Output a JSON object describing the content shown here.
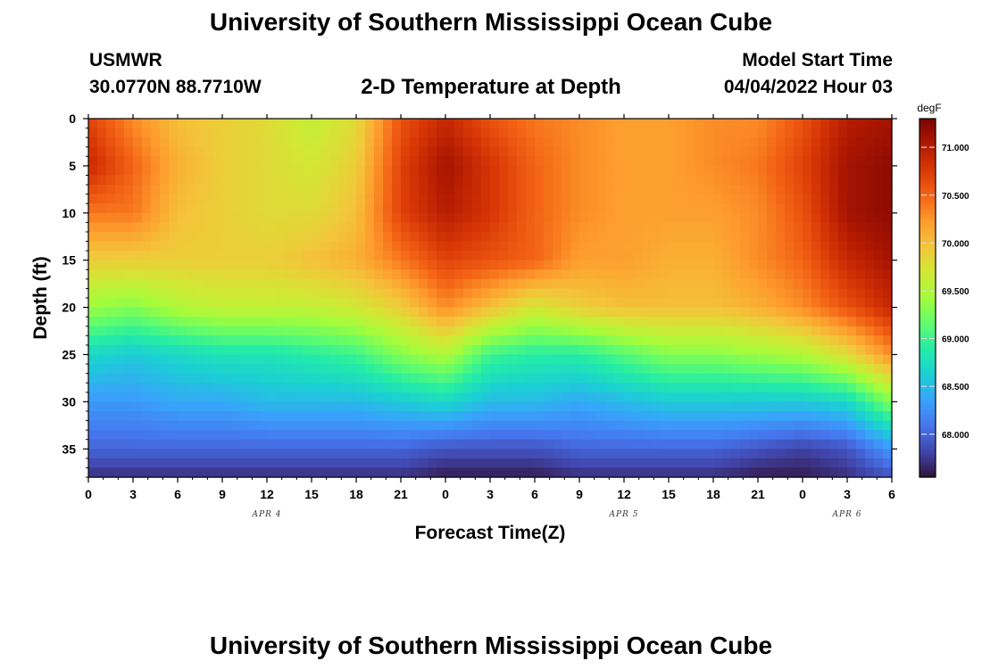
{
  "header": {
    "title": "University of Southern Mississippi Ocean Cube",
    "station_id": "USMWR",
    "station_coords": "30.0770N  88.7710W",
    "model_start_label": "Model Start Time",
    "model_start_time": "04/04/2022 Hour 03",
    "footer_title": "University of Southern Mississippi Ocean Cube"
  },
  "chart_data": {
    "type": "heatmap",
    "title": "2-D Temperature at Depth",
    "xlabel": "Forecast Time(Z)",
    "ylabel": "Depth (ft)",
    "x_range_hours": [
      0,
      54
    ],
    "x_tick_hours": [
      0,
      3,
      6,
      9,
      12,
      15,
      18,
      21,
      24,
      27,
      30,
      33,
      36,
      39,
      42,
      45,
      48,
      51,
      54
    ],
    "x_tick_labels": [
      "0",
      "3",
      "6",
      "9",
      "12",
      "15",
      "18",
      "21",
      "0",
      "3",
      "6",
      "9",
      "12",
      "15",
      "18",
      "21",
      "0",
      "3",
      "6"
    ],
    "date_labels": [
      {
        "hour": 12,
        "text": "APR 4"
      },
      {
        "hour": 36,
        "text": "APR 5"
      },
      {
        "hour": 51,
        "text": "APR 6"
      }
    ],
    "y_range_ft": [
      0,
      38
    ],
    "y_tick_values": [
      0,
      5,
      10,
      15,
      20,
      25,
      30,
      35
    ],
    "y_tick_labels": [
      "0",
      "5",
      "10",
      "15",
      "20",
      "25",
      "30",
      "35"
    ],
    "colorbar": {
      "unit": "degF",
      "min": 67.55,
      "max": 71.3,
      "tick_values": [
        68.0,
        68.5,
        69.0,
        69.5,
        70.0,
        70.5,
        71.0
      ],
      "tick_labels": [
        "68.000",
        "68.500",
        "69.000",
        "69.500",
        "70.000",
        "70.500",
        "71.000"
      ],
      "colors": [
        "#30123b",
        "#4145ab",
        "#4675ed",
        "#39a2fc",
        "#1bcfd4",
        "#24eca6",
        "#61fc6c",
        "#a4fc3b",
        "#d1e834",
        "#f3c63a",
        "#fe9b2d",
        "#f36315",
        "#d93806",
        "#b11901",
        "#7a0403"
      ]
    },
    "depth_profile_ft": [
      0,
      5,
      10,
      15,
      20,
      25,
      30,
      35,
      38
    ],
    "time_profile_hours": [
      0,
      3,
      6,
      9,
      12,
      15,
      18,
      21,
      24,
      27,
      30,
      33,
      36,
      39,
      42,
      45,
      48,
      51,
      54
    ],
    "temperature_degF": [
      [
        70.7,
        70.3,
        70.0,
        69.9,
        69.8,
        69.6,
        69.8,
        70.6,
        70.9,
        70.6,
        70.4,
        70.3,
        70.2,
        70.2,
        70.3,
        70.3,
        70.6,
        71.0,
        71.1
      ],
      [
        70.9,
        70.5,
        70.1,
        69.9,
        69.8,
        69.7,
        69.9,
        70.7,
        71.1,
        70.8,
        70.5,
        70.3,
        70.2,
        70.2,
        70.3,
        70.4,
        70.7,
        71.1,
        71.2
      ],
      [
        70.4,
        70.4,
        70.0,
        69.9,
        69.8,
        69.8,
        70.0,
        70.7,
        71.0,
        70.8,
        70.5,
        70.3,
        70.2,
        70.2,
        70.2,
        70.3,
        70.6,
        71.1,
        71.2
      ],
      [
        69.9,
        69.9,
        69.9,
        69.9,
        69.9,
        70.0,
        70.1,
        70.4,
        70.7,
        70.6,
        70.5,
        70.2,
        70.2,
        70.1,
        70.1,
        70.3,
        70.5,
        70.9,
        71.1
      ],
      [
        69.4,
        69.3,
        69.5,
        69.6,
        69.6,
        69.6,
        69.7,
        69.9,
        70.3,
        70.0,
        69.7,
        69.9,
        70.0,
        70.0,
        70.0,
        70.1,
        70.3,
        70.6,
        70.9
      ],
      [
        68.7,
        68.6,
        68.7,
        68.8,
        68.8,
        68.9,
        69.0,
        69.3,
        69.5,
        69.0,
        68.9,
        68.9,
        69.1,
        69.3,
        69.3,
        69.4,
        69.5,
        69.8,
        70.3
      ],
      [
        68.3,
        68.3,
        68.4,
        68.4,
        68.5,
        68.5,
        68.5,
        68.6,
        68.7,
        68.5,
        68.5,
        68.4,
        68.5,
        68.6,
        68.6,
        68.6,
        68.6,
        68.7,
        69.3
      ],
      [
        68.0,
        68.0,
        68.0,
        68.0,
        68.0,
        68.0,
        68.0,
        68.0,
        67.9,
        67.9,
        67.9,
        68.0,
        68.0,
        68.0,
        68.0,
        67.9,
        67.8,
        67.9,
        68.3
      ],
      [
        67.7,
        67.7,
        67.7,
        67.7,
        67.7,
        67.7,
        67.7,
        67.7,
        67.6,
        67.6,
        67.6,
        67.7,
        67.7,
        67.7,
        67.7,
        67.6,
        67.6,
        67.7,
        67.9
      ]
    ]
  }
}
